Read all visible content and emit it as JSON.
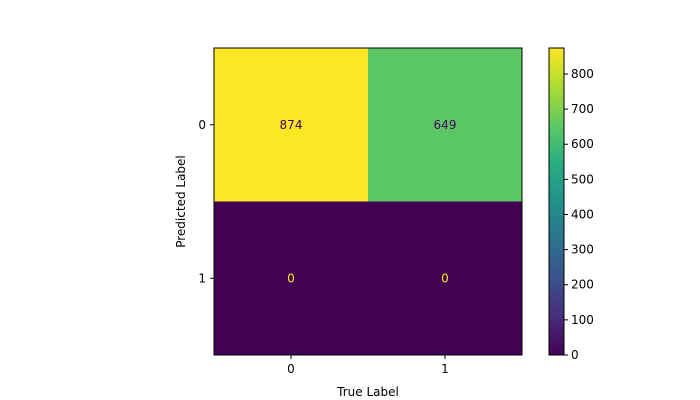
{
  "chart_data": {
    "type": "heatmap",
    "title": "",
    "xlabel": "True Label",
    "ylabel": "Predicted Label",
    "x_categories": [
      "0",
      "1"
    ],
    "y_categories": [
      "0",
      "1"
    ],
    "values": [
      [
        874,
        649
      ],
      [
        0,
        0
      ]
    ],
    "cell_labels": [
      [
        "874",
        "649"
      ],
      [
        "0",
        "0"
      ]
    ],
    "colormap": "viridis",
    "colorbar": {
      "range": [
        0,
        874
      ],
      "ticks": [
        0,
        100,
        200,
        300,
        400,
        500,
        600,
        700,
        800
      ],
      "tick_labels": [
        "0",
        "100",
        "200",
        "300",
        "400",
        "500",
        "600",
        "700",
        "800"
      ]
    },
    "colors": {
      "high": "#fde725",
      "low": "#440154",
      "text_on_dark": "#fde725",
      "text_on_light": "#440154"
    }
  }
}
